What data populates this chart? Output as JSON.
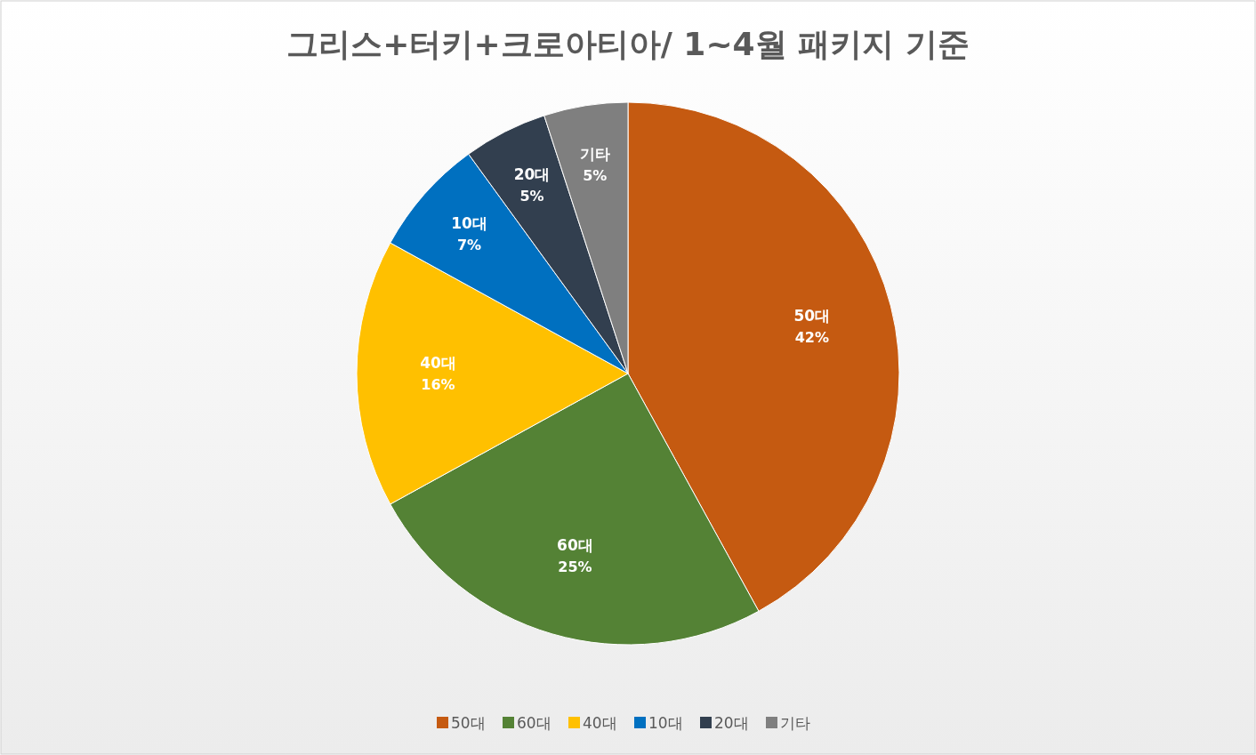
{
  "chart_data": {
    "type": "pie",
    "title": "그리스+터키+크로아티아/  1~4월 패키지 기준",
    "categories": [
      "50대",
      "60대",
      "40대",
      "10대",
      "20대",
      "기타"
    ],
    "values": [
      42,
      25,
      16,
      7,
      5,
      5
    ],
    "colors": [
      "#c55a11",
      "#548235",
      "#ffc000",
      "#0070c0",
      "#323f4f",
      "#7f7f7f"
    ],
    "value_labels": [
      "42%",
      "25%",
      "16%",
      "7%",
      "5%",
      "5%"
    ],
    "legend": "bottom"
  }
}
